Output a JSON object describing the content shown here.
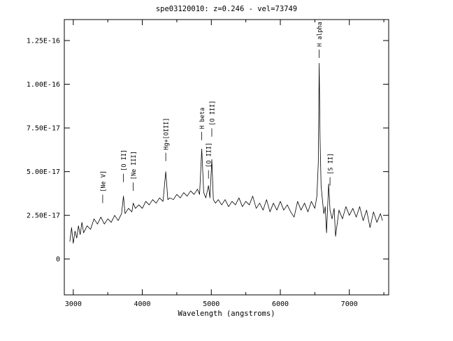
{
  "chart_data": {
    "type": "line",
    "title": "spe03120010: z=0.246 - vel=73749",
    "xlabel": "Wavelength (angstroms)",
    "ylabel": "",
    "xlim": [
      2870,
      7570
    ],
    "ylim": [
      -2.05e-17,
      1.37e-16
    ],
    "xticks": [
      {
        "value": 3000,
        "label": "3000"
      },
      {
        "value": 4000,
        "label": "4000"
      },
      {
        "value": 5000,
        "label": "5000"
      },
      {
        "value": 6000,
        "label": "6000"
      },
      {
        "value": 7000,
        "label": "7000"
      }
    ],
    "yticks": [
      {
        "value": 0,
        "label": "0"
      },
      {
        "value": 2.5e-17,
        "label": "2.50E-17"
      },
      {
        "value": 5e-17,
        "label": "5.00E-17"
      },
      {
        "value": 7.5e-17,
        "label": "7.50E-17"
      },
      {
        "value": 1e-16,
        "label": "1.00E-16"
      },
      {
        "value": 1.25e-16,
        "label": "1.25E-16"
      }
    ],
    "grid": false,
    "legend": "none",
    "series": [
      {
        "color": "#000000",
        "x": [
          2950,
          2975,
          3000,
          3025,
          3050,
          3075,
          3100,
          3125,
          3150,
          3200,
          3250,
          3300,
          3350,
          3400,
          3450,
          3500,
          3550,
          3600,
          3650,
          3700,
          3727,
          3750,
          3800,
          3850,
          3869,
          3900,
          3950,
          4000,
          4050,
          4100,
          4150,
          4200,
          4250,
          4300,
          4340,
          4370,
          4400,
          4450,
          4500,
          4550,
          4600,
          4650,
          4700,
          4750,
          4800,
          4830,
          4861,
          4890,
          4920,
          4959,
          4980,
          5007,
          5030,
          5060,
          5100,
          5150,
          5200,
          5250,
          5300,
          5350,
          5400,
          5450,
          5500,
          5550,
          5600,
          5650,
          5700,
          5750,
          5800,
          5850,
          5900,
          5950,
          6000,
          6050,
          6100,
          6150,
          6200,
          6250,
          6300,
          6350,
          6400,
          6450,
          6500,
          6530,
          6550,
          6563,
          6575,
          6590,
          6610,
          6630,
          6650,
          6670,
          6700,
          6720,
          6750,
          6780,
          6800,
          6850,
          6900,
          6950,
          7000,
          7050,
          7100,
          7150,
          7200,
          7250,
          7300,
          7350,
          7400,
          7450,
          7480
        ],
        "y": [
          1e-17,
          1.8e-17,
          9e-18,
          1.6e-17,
          1.2e-17,
          1.9e-17,
          1.4e-17,
          2.1e-17,
          1.5e-17,
          1.9e-17,
          1.7e-17,
          2.3e-17,
          2e-17,
          2.4e-17,
          2e-17,
          2.3e-17,
          2.1e-17,
          2.5e-17,
          2.2e-17,
          2.6e-17,
          3.6e-17,
          2.6e-17,
          2.9e-17,
          2.7e-17,
          3.2e-17,
          2.9e-17,
          3.1e-17,
          2.9e-17,
          3.3e-17,
          3.1e-17,
          3.4e-17,
          3.2e-17,
          3.5e-17,
          3.3e-17,
          5e-17,
          3.4e-17,
          3.5e-17,
          3.4e-17,
          3.7e-17,
          3.5e-17,
          3.8e-17,
          3.6e-17,
          3.9e-17,
          3.7e-17,
          4e-17,
          3.7e-17,
          6.3e-17,
          3.8e-17,
          3.5e-17,
          4.2e-17,
          3.5e-17,
          5.7e-17,
          3.4e-17,
          3.2e-17,
          3.4e-17,
          3.1e-17,
          3.4e-17,
          3e-17,
          3.3e-17,
          3.1e-17,
          3.5e-17,
          3e-17,
          3.3e-17,
          3.1e-17,
          3.6e-17,
          2.9e-17,
          3.2e-17,
          2.8e-17,
          3.4e-17,
          2.7e-17,
          3.2e-17,
          2.8e-17,
          3.3e-17,
          2.8e-17,
          3.1e-17,
          2.7e-17,
          2.4e-17,
          3.3e-17,
          2.8e-17,
          3.2e-17,
          2.7e-17,
          3.3e-17,
          2.9e-17,
          3.6e-17,
          5.5e-17,
          1.12e-16,
          7e-17,
          4.2e-17,
          3.4e-17,
          2.6e-17,
          3e-17,
          1.5e-17,
          4.3e-17,
          2.8e-17,
          2.3e-17,
          2.9e-17,
          1.3e-17,
          2.8e-17,
          2.3e-17,
          3e-17,
          2.5e-17,
          2.9e-17,
          2.4e-17,
          3e-17,
          2.2e-17,
          2.8e-17,
          1.8e-17,
          2.7e-17,
          2.1e-17,
          2.6e-17,
          2.2e-17
        ]
      }
    ],
    "annotations": [
      {
        "text": "[Ne V]",
        "x": 3426,
        "y": 3.2e-17
      },
      {
        "text": "[O II]",
        "x": 3727,
        "y": 4.4e-17
      },
      {
        "text": "[Ne III]",
        "x": 3869,
        "y": 3.9e-17
      },
      {
        "text": "Hg+[OIII]",
        "x": 4340,
        "y": 5.6e-17
      },
      {
        "text": "H beta",
        "x": 4861,
        "y": 6.8e-17
      },
      {
        "text": "[O III]",
        "x": 4959,
        "y": 4.6e-17
      },
      {
        "text": "[O III]",
        "x": 5007,
        "y": 7e-17
      },
      {
        "text": "H alpha",
        "x": 6563,
        "y": 1.15e-16
      },
      {
        "text": "[S II]",
        "x": 6720,
        "y": 4.2e-17
      }
    ]
  }
}
